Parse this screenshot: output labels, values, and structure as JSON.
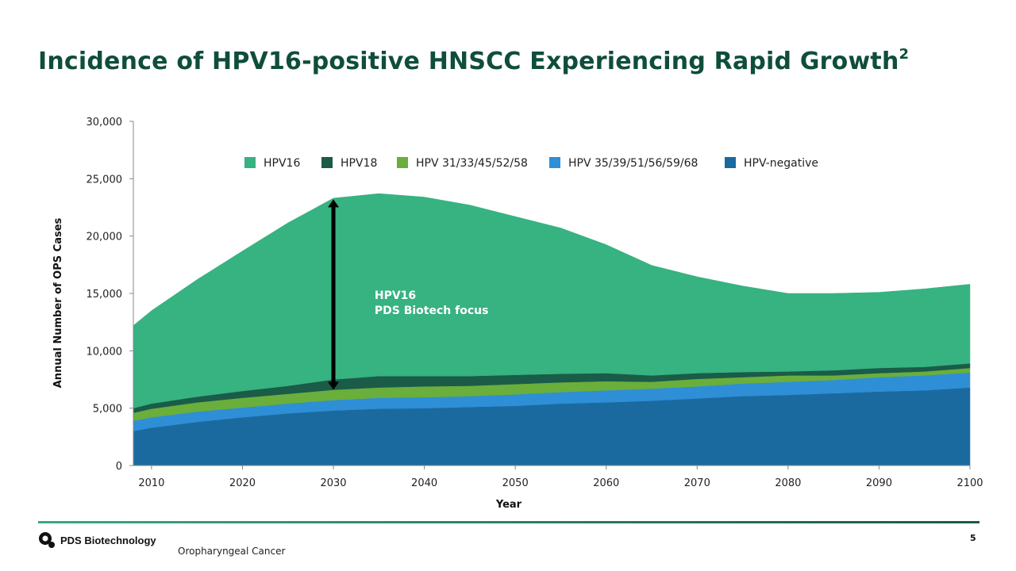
{
  "slide": {
    "title": "Incidence of HPV16-positive HNSCC Experiencing Rapid Growth",
    "title_superscript": "2",
    "footer_note": "Oropharyngeal Cancer",
    "page_number": "5",
    "logo_text": "PDS Biotechnology",
    "accent_color": "#0f4d3c"
  },
  "chart_data": {
    "type": "area",
    "stacked": true,
    "xlabel": "Year",
    "ylabel": "Annual Number of OPS Cases",
    "xlim": [
      2008,
      2100
    ],
    "ylim": [
      0,
      30000
    ],
    "x_ticks": [
      2010,
      2020,
      2030,
      2040,
      2050,
      2060,
      2070,
      2080,
      2090,
      2100
    ],
    "x_tick_labels": [
      "2010",
      "2020",
      "2030",
      "2040",
      "2050",
      "2060",
      "2070",
      "2080",
      "2090",
      "2100"
    ],
    "y_ticks": [
      0,
      5000,
      10000,
      15000,
      20000,
      25000,
      30000
    ],
    "y_tick_labels": [
      "0",
      "5,000",
      "10,000",
      "15,000",
      "20,000",
      "25,000",
      "30,000"
    ],
    "x": [
      2008,
      2010,
      2015,
      2020,
      2025,
      2030,
      2035,
      2040,
      2045,
      2050,
      2055,
      2060,
      2065,
      2070,
      2075,
      2080,
      2085,
      2090,
      2095,
      2100
    ],
    "series": [
      {
        "name": "HPV-negative",
        "color": "#1a6aa0",
        "values": [
          3000,
          3300,
          3800,
          4200,
          4550,
          4800,
          4950,
          5000,
          5100,
          5200,
          5400,
          5500,
          5650,
          5850,
          6050,
          6150,
          6300,
          6450,
          6550,
          6800
        ]
      },
      {
        "name": "HPV 35/39/51/56/59/68",
        "color": "#2e8fd6",
        "values": [
          900,
          900,
          900,
          850,
          850,
          900,
          950,
          950,
          950,
          1000,
          1000,
          1050,
          1050,
          1050,
          1100,
          1150,
          1150,
          1250,
          1300,
          1300
        ]
      },
      {
        "name": "HPV 31/33/45/52/58",
        "color": "#6aae3c",
        "values": [
          700,
          750,
          800,
          850,
          850,
          900,
          900,
          950,
          900,
          900,
          850,
          800,
          600,
          650,
          550,
          550,
          400,
          350,
          350,
          400
        ]
      },
      {
        "name": "HPV18",
        "color": "#1a5c48",
        "values": [
          400,
          450,
          500,
          600,
          700,
          900,
          1000,
          900,
          850,
          800,
          750,
          700,
          550,
          500,
          450,
          350,
          450,
          450,
          400,
          400
        ]
      },
      {
        "name": "HPV16",
        "color": "#37b281",
        "values": [
          7200,
          8100,
          10200,
          12200,
          14200,
          15800,
          15900,
          15600,
          14900,
          13800,
          12700,
          11200,
          9600,
          8400,
          7500,
          6800,
          6700,
          6600,
          6800,
          6900
        ]
      }
    ],
    "legend_order": [
      "HPV16",
      "HPV18",
      "HPV 31/33/45/52/58",
      "HPV 35/39/51/56/59/68",
      "HPV-negative"
    ],
    "legend_position": "top-center",
    "annotation": {
      "lines": [
        "HPV16",
        "PDS Biotech focus"
      ],
      "arrow_year": 2030,
      "arrow_from_value": 6600,
      "arrow_to_value": 23200,
      "text_year": 2034,
      "text_value": 14500
    }
  }
}
